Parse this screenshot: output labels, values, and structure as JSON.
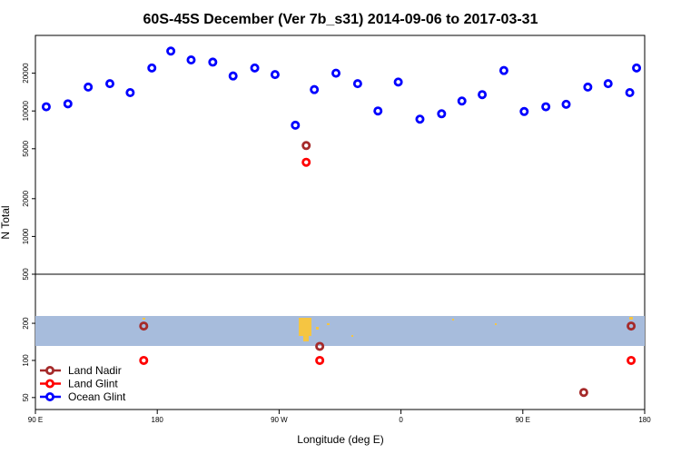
{
  "chart_data": {
    "type": "scatter",
    "title": "60S-45S December (Ver 7b_s31)   2014-09-06 to 2017-03-31",
    "xlabel": "Longitude (deg E)",
    "ylabel": "N Total",
    "y_scale": "log",
    "x_ticks": [
      {
        "label": "90 E",
        "value": 90
      },
      {
        "label": "180",
        "value": 180
      },
      {
        "label": "90 W",
        "value": 270
      },
      {
        "label": "0",
        "value": 360
      },
      {
        "label": "90 E",
        "value": 450
      },
      {
        "label": "180",
        "value": 540
      }
    ],
    "x_range": [
      90,
      540
    ],
    "y_ticks_upper": [
      20000,
      10000,
      5000,
      2000,
      1000,
      500
    ],
    "y_ticks_lower": [
      200,
      100,
      50
    ],
    "upper_panel_ylim": [
      500,
      40000
    ],
    "lower_panel_ylim": [
      40,
      500
    ],
    "colors": {
      "land_nadir": "#a52a2a",
      "land_glint": "#ff0000",
      "ocean_glint": "#0000ff",
      "map_band": "#a7bcdc",
      "land": "#f5c542"
    },
    "series": [
      {
        "name": "Land Nadir",
        "color": "#a52a2a",
        "points": [
          [
            170,
            190
          ],
          [
            290,
            5300
          ],
          [
            300,
            130
          ],
          [
            530,
            190
          ],
          [
            495,
            55
          ]
        ]
      },
      {
        "name": "Land Glint",
        "color": "#ff0000",
        "points": [
          [
            170,
            100
          ],
          [
            290,
            3900
          ],
          [
            300,
            100
          ],
          [
            530,
            100
          ]
        ]
      },
      {
        "name": "Ocean Glint",
        "color": "#0000ff",
        "points": [
          [
            98,
            10800
          ],
          [
            114,
            11400
          ],
          [
            129,
            15500
          ],
          [
            145,
            16500
          ],
          [
            160,
            14000
          ],
          [
            176,
            22000
          ],
          [
            190,
            30000
          ],
          [
            205,
            25500
          ],
          [
            221,
            24500
          ],
          [
            236,
            19000
          ],
          [
            252,
            22000
          ],
          [
            267,
            19500
          ],
          [
            282,
            7700
          ],
          [
            296,
            14800
          ],
          [
            312,
            20000
          ],
          [
            328,
            16500
          ],
          [
            343,
            10000
          ],
          [
            358,
            17000
          ],
          [
            374,
            8600
          ],
          [
            390,
            9500
          ],
          [
            405,
            12000
          ],
          [
            420,
            13500
          ],
          [
            436,
            21000
          ],
          [
            451,
            9900
          ],
          [
            467,
            10800
          ],
          [
            482,
            11300
          ],
          [
            498,
            15500
          ],
          [
            513,
            16500
          ],
          [
            529,
            14000
          ],
          [
            534,
            22000
          ]
        ]
      }
    ],
    "legend": {
      "position": "bottom-left",
      "entries": [
        {
          "label": "Land Nadir",
          "color": "#a52a2a"
        },
        {
          "label": "Land Glint",
          "color": "#ff0000"
        },
        {
          "label": "Ocean Glint",
          "color": "#0000ff"
        }
      ]
    }
  }
}
